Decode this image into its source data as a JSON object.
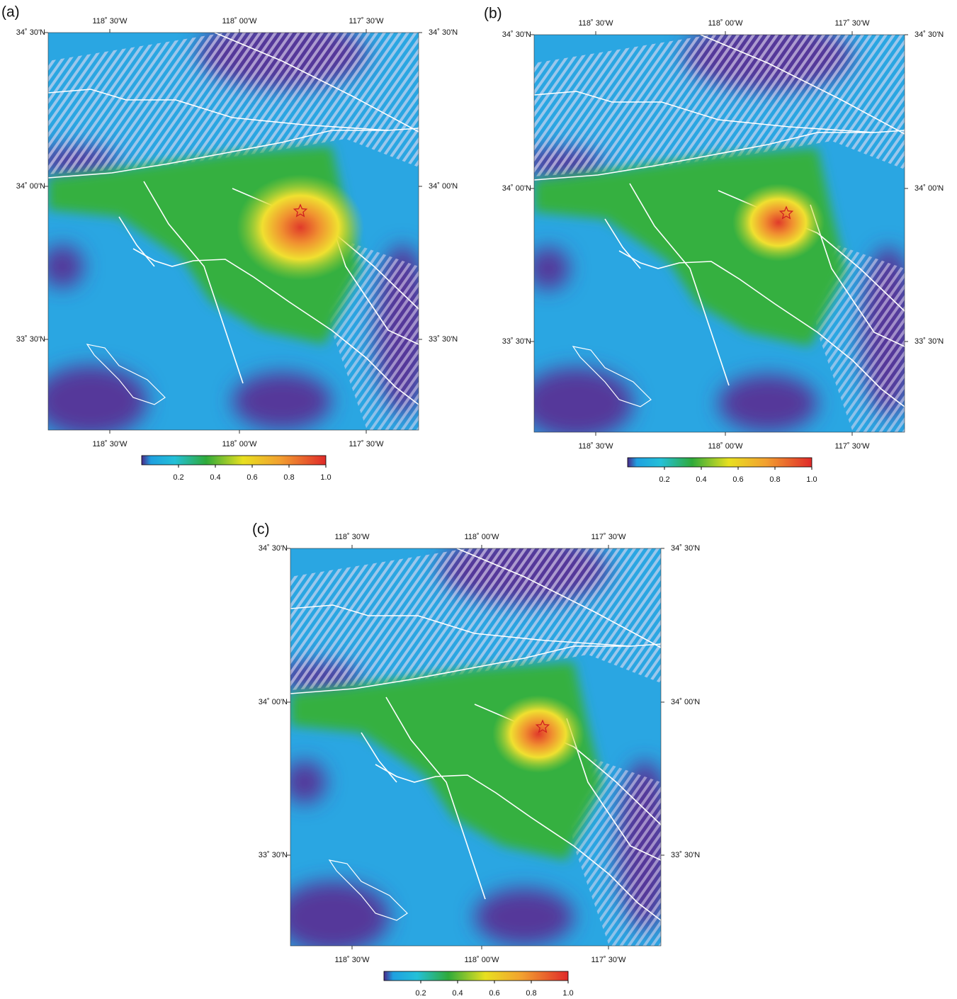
{
  "panels": [
    {
      "label": "(a)",
      "x_ticks": [
        "118˚ 30'W",
        "118˚ 00'W",
        "117˚ 30'W"
      ],
      "y_ticks": [
        "34˚ 30'N",
        "34˚ 00'N",
        "33˚ 30'N"
      ],
      "colorbar_ticks": [
        "0.2",
        "0.4",
        "0.6",
        "0.8",
        "1.0"
      ]
    },
    {
      "label": "(b)",
      "x_ticks": [
        "118˚ 30'W",
        "118˚ 00'W",
        "117˚ 30'W"
      ],
      "y_ticks": [
        "34˚ 30'N",
        "34˚ 00'N",
        "33˚ 30'N"
      ],
      "colorbar_ticks": [
        "0.2",
        "0.4",
        "0.6",
        "0.8",
        "1.0"
      ]
    },
    {
      "label": "(c)",
      "x_ticks": [
        "118˚ 30'W",
        "118˚ 00'W",
        "117˚ 30'W"
      ],
      "y_ticks": [
        "34˚ 30'N",
        "34˚ 00'N",
        "33˚ 30'N"
      ],
      "colorbar_ticks": [
        "0.2",
        "0.4",
        "0.6",
        "0.8",
        "1.0"
      ]
    }
  ]
}
